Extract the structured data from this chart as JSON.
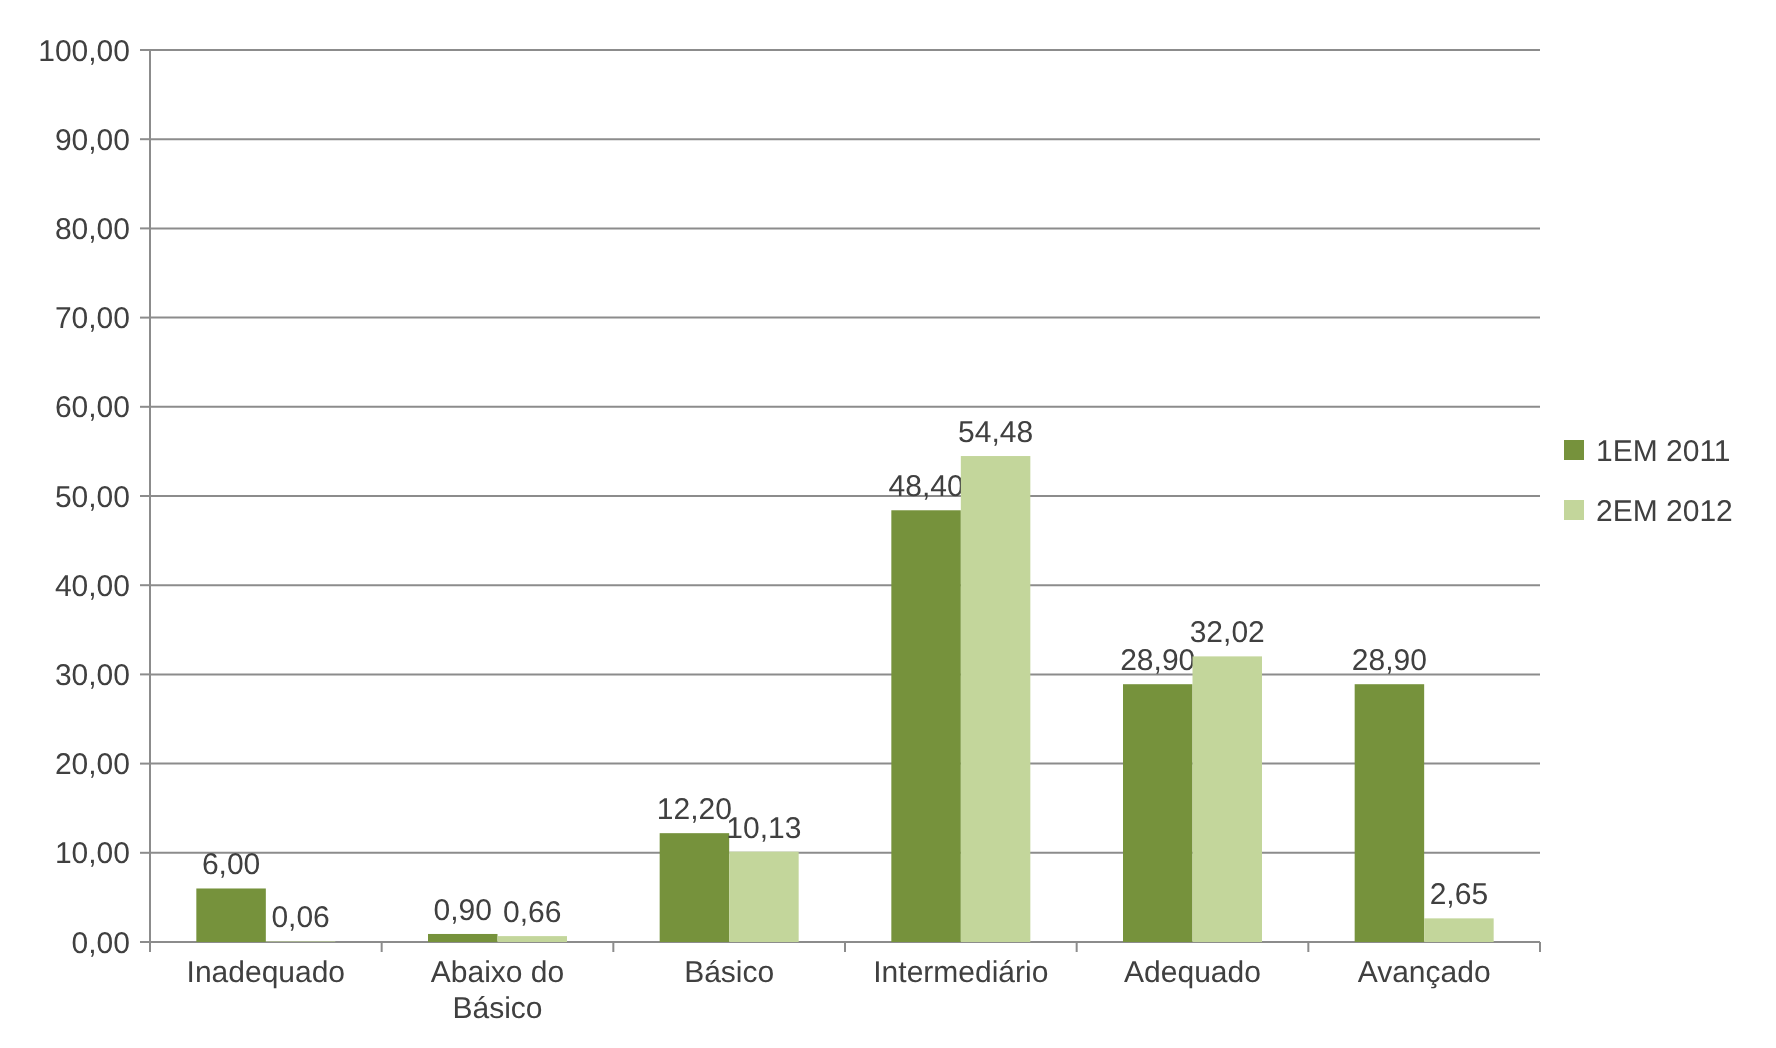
{
  "chart_data": {
    "type": "bar",
    "categories": [
      "Inadequado",
      "Abaixo do Básico",
      "Básico",
      "Intermediário",
      "Adequado",
      "Avançado"
    ],
    "series": [
      {
        "name": "1EM 2011",
        "color": "#76923c",
        "values": [
          6.0,
          0.9,
          12.2,
          48.4,
          28.9,
          28.9
        ],
        "value_labels": [
          "6,00",
          "0,90",
          "12,20",
          "48,40",
          "28,90",
          "28,90"
        ]
      },
      {
        "name": "2EM 2012",
        "color": "#c3d69b",
        "values": [
          0.06,
          0.66,
          10.13,
          54.48,
          32.02,
          2.65
        ],
        "value_labels": [
          "0,06",
          "0,66",
          "10,13",
          "54,48",
          "32,02",
          "2,65"
        ]
      }
    ],
    "ylim": [
      0,
      100
    ],
    "yticks": [
      {
        "value": 0,
        "label": "0,00"
      },
      {
        "value": 10,
        "label": "10,00"
      },
      {
        "value": 20,
        "label": "20,00"
      },
      {
        "value": 30,
        "label": "30,00"
      },
      {
        "value": 40,
        "label": "40,00"
      },
      {
        "value": 50,
        "label": "50,00"
      },
      {
        "value": 60,
        "label": "60,00"
      },
      {
        "value": 70,
        "label": "70,00"
      },
      {
        "value": 80,
        "label": "80,00"
      },
      {
        "value": 90,
        "label": "90,00"
      },
      {
        "value": 100,
        "label": "100,00"
      }
    ],
    "grid": "y",
    "legend": "right"
  }
}
